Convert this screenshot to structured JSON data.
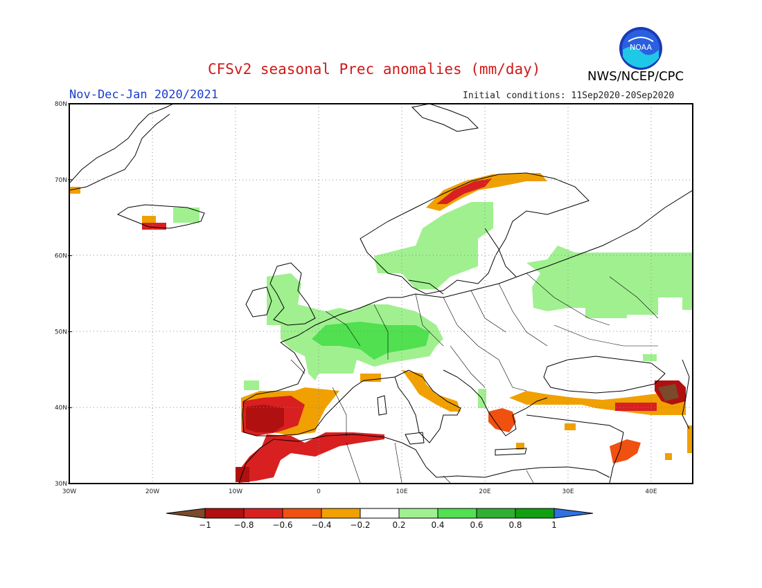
{
  "title": "CFSv2 seasonal Prec anomalies (mm/day)",
  "season": "Nov-Dec-Jan 2020/2021",
  "initial_conditions": "Initial conditions: 11Sep2020-20Sep2020",
  "agency": "NWS/NCEP/CPC",
  "logo_text": "NOAA",
  "map": {
    "lon_range": [
      -30,
      45
    ],
    "lat_range": [
      30,
      80
    ],
    "lat_labels": [
      "30N",
      "40N",
      "50N",
      "60N",
      "70N",
      "80N"
    ],
    "lon_labels": [
      "30W",
      "20W",
      "10W",
      "0",
      "10E",
      "20E",
      "30E",
      "40E"
    ]
  },
  "colorbar": {
    "labels": [
      "−1",
      "−0.8",
      "−0.6",
      "−0.4",
      "−0.2",
      "0.2",
      "0.4",
      "0.6",
      "0.8",
      "1"
    ],
    "colors": [
      "#7a4a2a",
      "#b01010",
      "#d82020",
      "#f05010",
      "#f0a000",
      "#ffffff",
      "#a0f090",
      "#50e050",
      "#30b030",
      "#10a010",
      "#3070e0"
    ]
  },
  "anomaly_regions": [
    {
      "name": "scandinavia-green",
      "color": "#a0f090"
    },
    {
      "name": "russia-green",
      "color": "#a0f090"
    },
    {
      "name": "central-europe-green",
      "color": "#a0f090"
    },
    {
      "name": "alps-green",
      "color": "#50e050"
    },
    {
      "name": "iberia-orange",
      "color": "#f0a000"
    },
    {
      "name": "iberia-red",
      "color": "#d82020"
    },
    {
      "name": "iberia-darkred",
      "color": "#b01010"
    },
    {
      "name": "north-africa-red",
      "color": "#d82020"
    },
    {
      "name": "italy-orange",
      "color": "#f0a000"
    },
    {
      "name": "greece-red",
      "color": "#f05010"
    },
    {
      "name": "turkey-orange",
      "color": "#f0a000"
    },
    {
      "name": "caucasus-darkred",
      "color": "#b01010"
    },
    {
      "name": "norway-coast-orange",
      "color": "#f0a000"
    },
    {
      "name": "iceland-orange",
      "color": "#f0a000"
    }
  ]
}
